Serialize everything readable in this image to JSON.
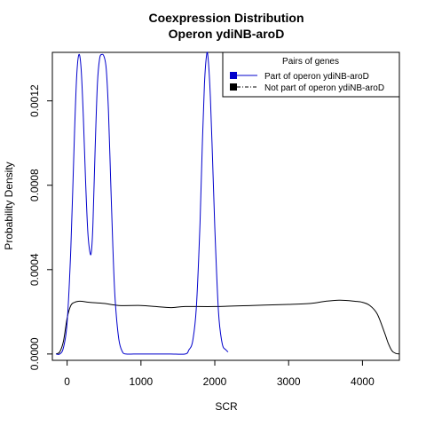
{
  "chart_data": {
    "type": "line",
    "title": "Coexpression Distribution",
    "subtitle": "Operon ydiNB-aroD",
    "xlabel": "SCR",
    "ylabel": "Probability Density",
    "xlim": [
      -200,
      4500
    ],
    "ylim": [
      -3e-05,
      0.00143
    ],
    "x_ticks": [
      0,
      1000,
      2000,
      3000,
      4000
    ],
    "x_tick_labels": [
      "0",
      "1000",
      "2000",
      "3000",
      "4000"
    ],
    "y_ticks": [
      0.0,
      0.0004,
      0.0008,
      0.0012
    ],
    "y_tick_labels": [
      "0.0000",
      "0.0004",
      "0.0008",
      "0.0012"
    ],
    "grid": false,
    "legend": {
      "title": "Pairs of genes",
      "position": "top-right",
      "entries": [
        {
          "label": "Part of operon ydiNB-aroD",
          "color": "#0000cc",
          "line_style": "solid",
          "series_index": 0
        },
        {
          "label": "Not part of operon ydiNB-aroD",
          "color": "#000000",
          "line_style": "dashdot",
          "series_index": 1
        }
      ]
    },
    "series": [
      {
        "name": "Part of operon ydiNB-aroD",
        "color": "#0000cc",
        "x": [
          -150,
          -100,
          -50,
          0,
          50,
          100,
          130,
          160,
          190,
          220,
          250,
          280,
          310,
          330,
          350,
          380,
          410,
          440,
          470,
          500,
          530,
          560,
          590,
          620,
          650,
          700,
          750,
          800,
          900,
          1000,
          1200,
          1400,
          1600,
          1650,
          1700,
          1750,
          1800,
          1830,
          1860,
          1890,
          1910,
          1940,
          1970,
          2000,
          2050,
          2100,
          2150,
          2180
        ],
        "y": [
          0.0,
          0.0,
          3e-05,
          0.00015,
          0.0005,
          0.00105,
          0.00132,
          0.00142,
          0.00135,
          0.00112,
          0.00082,
          0.00058,
          0.00048,
          0.00049,
          0.00062,
          0.00098,
          0.00128,
          0.0014,
          0.00142,
          0.00141,
          0.00135,
          0.00115,
          0.00082,
          0.0005,
          0.00026,
          7e-05,
          1e-05,
          0.0,
          0.0,
          0.0,
          0.0,
          0.0,
          0.0,
          2e-05,
          6e-05,
          0.00022,
          0.00062,
          0.00098,
          0.00128,
          0.00142,
          0.0014,
          0.00122,
          0.00092,
          0.0006,
          0.0002,
          5e-05,
          2e-05,
          1e-05
        ]
      },
      {
        "name": "Not part of operon ydiNB-aroD",
        "color": "#000000",
        "x": [
          -150,
          -100,
          -50,
          0,
          50,
          100,
          150,
          200,
          300,
          500,
          700,
          1000,
          1200,
          1400,
          1600,
          2000,
          2500,
          3000,
          3300,
          3500,
          3700,
          3900,
          4000,
          4100,
          4200,
          4300,
          4350,
          4400,
          4450,
          4500
        ],
        "y": [
          0.0,
          1e-05,
          6e-05,
          0.00017,
          0.00023,
          0.000245,
          0.00025,
          0.00025,
          0.000245,
          0.00024,
          0.00023,
          0.00023,
          0.000225,
          0.00022,
          0.000225,
          0.000225,
          0.00023,
          0.000235,
          0.00024,
          0.00025,
          0.000255,
          0.00025,
          0.000245,
          0.00023,
          0.00019,
          0.0001,
          5e-05,
          1.5e-05,
          3e-06,
          0.0
        ]
      }
    ]
  }
}
